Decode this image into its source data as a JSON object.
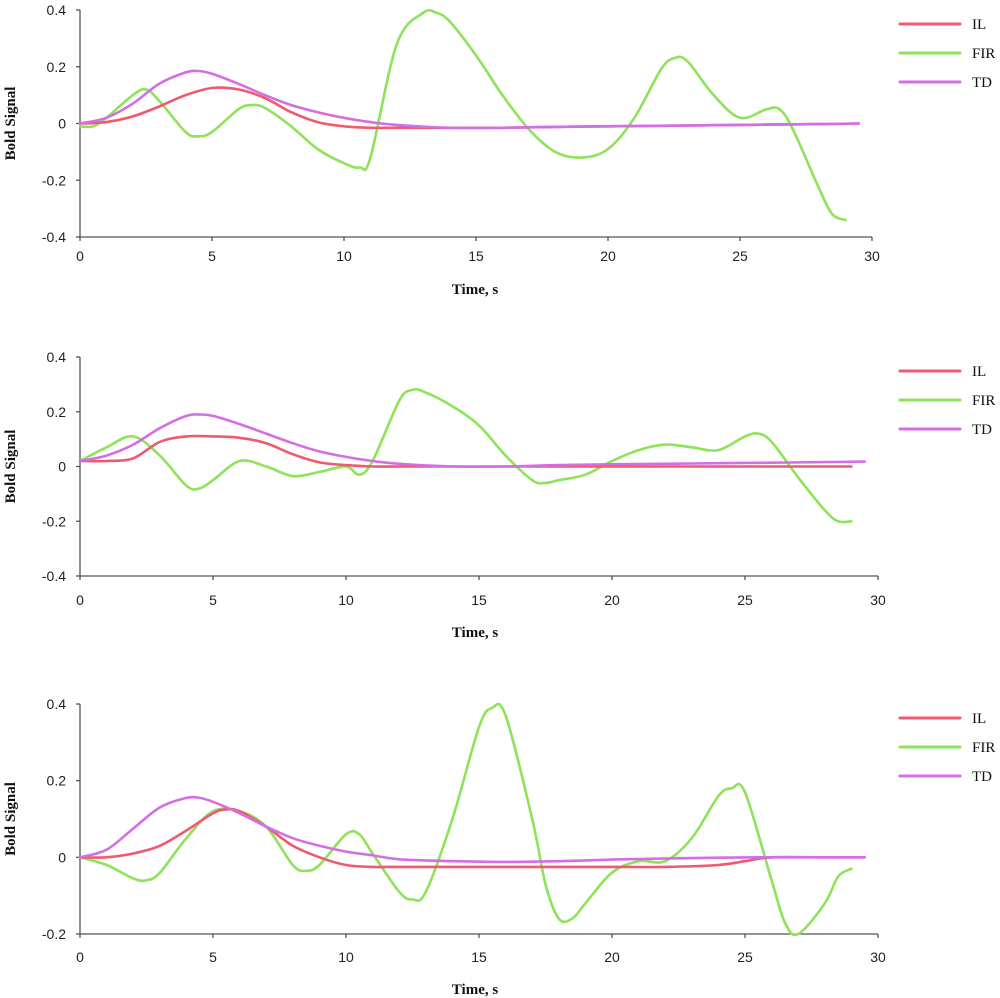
{
  "colors": {
    "IL": "#ef5a6f",
    "FIR": "#8ee35a",
    "TD": "#d36ee6"
  },
  "chart_data": [
    {
      "type": "line",
      "xlabel": "Time, s",
      "ylabel": "Bold Signal",
      "xlim": [
        0,
        30
      ],
      "ylim": [
        -0.4,
        0.4
      ],
      "x_ticks": [
        "0",
        "5",
        "10",
        "15",
        "20",
        "25",
        "30"
      ],
      "y_ticks": [
        "0.4",
        "0.2",
        "0",
        "-0.2",
        "-0.4"
      ],
      "legend_position": "top-right",
      "series": [
        {
          "name": "IL",
          "x": [
            0,
            1,
            2,
            3,
            4,
            5,
            6,
            7,
            8,
            9,
            10,
            11,
            12,
            14,
            16,
            18,
            20,
            22,
            24,
            26,
            28,
            29.5
          ],
          "values": [
            0,
            0.005,
            0.025,
            0.06,
            0.1,
            0.125,
            0.12,
            0.09,
            0.04,
            0.005,
            -0.01,
            -0.015,
            -0.015,
            -0.015,
            -0.015,
            -0.012,
            -0.01,
            -0.008,
            -0.006,
            -0.004,
            -0.002,
            0
          ]
        },
        {
          "name": "FIR",
          "x": [
            0,
            0.5,
            1,
            2,
            2.5,
            3,
            4,
            4.5,
            5,
            6,
            6.5,
            7,
            8,
            9,
            10,
            10.6,
            11,
            12,
            13,
            13.5,
            14,
            15,
            16,
            17,
            18,
            19,
            20,
            21,
            22,
            22.5,
            23,
            24,
            25,
            26,
            26.5,
            27,
            28,
            28.5,
            29
          ],
          "values": [
            -0.01,
            -0.01,
            0.02,
            0.1,
            0.12,
            0.08,
            -0.03,
            -0.045,
            -0.03,
            0.05,
            0.065,
            0.055,
            -0.01,
            -0.09,
            -0.14,
            -0.155,
            -0.12,
            0.28,
            0.39,
            0.39,
            0.36,
            0.24,
            0.1,
            -0.02,
            -0.1,
            -0.12,
            -0.09,
            0.02,
            0.19,
            0.23,
            0.22,
            0.1,
            0.02,
            0.05,
            0.05,
            -0.02,
            -0.23,
            -0.32,
            -0.34
          ]
        },
        {
          "name": "TD",
          "x": [
            0,
            1,
            2,
            3,
            4,
            4.5,
            5,
            6,
            7,
            8,
            9,
            10,
            11,
            12,
            14,
            16,
            18,
            20,
            22,
            24,
            26,
            28,
            29.5
          ],
          "values": [
            0,
            0.02,
            0.07,
            0.14,
            0.18,
            0.185,
            0.175,
            0.14,
            0.1,
            0.065,
            0.04,
            0.02,
            0.005,
            -0.005,
            -0.015,
            -0.015,
            -0.012,
            -0.01,
            -0.008,
            -0.006,
            -0.004,
            -0.002,
            0
          ]
        }
      ]
    },
    {
      "type": "line",
      "xlabel": "Time, s",
      "ylabel": "Bold Signal",
      "xlim": [
        0,
        30
      ],
      "ylim": [
        -0.4,
        0.4
      ],
      "x_ticks": [
        "0",
        "5",
        "10",
        "15",
        "20",
        "25",
        "30"
      ],
      "y_ticks": [
        "0.4",
        "0.2",
        "0",
        "-0.2",
        "-0.4"
      ],
      "legend_position": "top-right",
      "series": [
        {
          "name": "IL",
          "x": [
            0,
            1,
            2,
            3,
            4,
            5,
            6,
            7,
            8,
            9,
            10,
            11,
            12,
            14,
            16,
            18,
            20,
            22,
            24,
            26,
            28,
            29
          ],
          "values": [
            0.02,
            0.02,
            0.03,
            0.09,
            0.11,
            0.11,
            0.105,
            0.085,
            0.045,
            0.015,
            0.005,
            0,
            0,
            0,
            0,
            0,
            0,
            0,
            0,
            0,
            0,
            0
          ]
        },
        {
          "name": "FIR",
          "x": [
            0,
            1,
            2,
            3,
            4,
            4.5,
            5,
            6,
            7,
            8,
            9,
            10,
            10.5,
            11,
            12,
            12.5,
            13,
            14,
            15,
            16,
            17,
            17.5,
            18,
            19,
            20,
            21,
            22,
            23,
            24,
            25,
            25.5,
            26,
            27,
            28,
            28.5,
            29
          ],
          "values": [
            0.02,
            0.07,
            0.11,
            0.04,
            -0.07,
            -0.08,
            -0.05,
            0.02,
            0,
            -0.035,
            -0.02,
            0,
            -0.03,
            0.02,
            0.24,
            0.28,
            0.27,
            0.22,
            0.15,
            0.04,
            -0.05,
            -0.06,
            -0.05,
            -0.03,
            0.02,
            0.06,
            0.08,
            0.07,
            0.06,
            0.11,
            0.12,
            0.09,
            -0.04,
            -0.16,
            -0.2,
            -0.2
          ]
        },
        {
          "name": "TD",
          "x": [
            0,
            1,
            2,
            3,
            4,
            4.5,
            5,
            6,
            7,
            8,
            9,
            10,
            11,
            12,
            14,
            16,
            18,
            20,
            22,
            24,
            26,
            28,
            29.5
          ],
          "values": [
            0.02,
            0.04,
            0.08,
            0.14,
            0.185,
            0.19,
            0.185,
            0.155,
            0.12,
            0.085,
            0.055,
            0.035,
            0.02,
            0.01,
            0,
            0,
            0.005,
            0.008,
            0.01,
            0.012,
            0.014,
            0.016,
            0.018
          ]
        }
      ]
    },
    {
      "type": "line",
      "xlabel": "Time, s",
      "ylabel": "Bold Signal",
      "xlim": [
        0,
        30
      ],
      "ylim": [
        -0.2,
        0.4
      ],
      "x_ticks": [
        "0",
        "5",
        "10",
        "15",
        "20",
        "25",
        "30"
      ],
      "y_ticks": [
        "0.4",
        "0.2",
        "0",
        "-0.2"
      ],
      "legend_position": "top-right",
      "series": [
        {
          "name": "IL",
          "x": [
            0,
            1,
            2,
            3,
            4,
            5,
            5.5,
            6,
            7,
            8,
            9,
            10,
            11,
            12,
            14,
            16,
            18,
            20,
            22,
            24,
            25,
            26,
            28,
            29.5
          ],
          "values": [
            0,
            0,
            0.01,
            0.03,
            0.07,
            0.115,
            0.125,
            0.12,
            0.08,
            0.03,
            0,
            -0.02,
            -0.025,
            -0.025,
            -0.025,
            -0.025,
            -0.025,
            -0.025,
            -0.025,
            -0.02,
            -0.01,
            0,
            0,
            0
          ]
        },
        {
          "name": "FIR",
          "x": [
            0,
            1,
            2,
            2.5,
            3,
            4,
            5,
            6,
            7,
            8,
            8.5,
            9,
            10,
            10.5,
            11,
            12,
            12.5,
            13,
            14,
            15,
            15.5,
            16,
            17,
            17.5,
            18,
            18.5,
            19,
            20,
            21,
            22,
            23,
            24,
            24.5,
            25,
            26,
            26.5,
            27,
            28,
            28.5,
            29
          ],
          "values": [
            0,
            -0.02,
            -0.055,
            -0.06,
            -0.04,
            0.05,
            0.12,
            0.12,
            0.08,
            -0.02,
            -0.035,
            -0.02,
            0.06,
            0.06,
            0.01,
            -0.09,
            -0.11,
            -0.09,
            0.1,
            0.34,
            0.39,
            0.37,
            0.1,
            -0.07,
            -0.16,
            -0.16,
            -0.12,
            -0.04,
            -0.01,
            -0.01,
            0.05,
            0.16,
            0.18,
            0.17,
            -0.06,
            -0.17,
            -0.2,
            -0.12,
            -0.05,
            -0.03
          ]
        },
        {
          "name": "TD",
          "x": [
            0,
            1,
            2,
            3,
            4,
            4.5,
            5,
            6,
            7,
            8,
            9,
            10,
            11,
            12,
            14,
            16,
            18,
            20,
            22,
            24,
            26,
            28,
            29.5
          ],
          "values": [
            0,
            0.02,
            0.075,
            0.13,
            0.155,
            0.155,
            0.145,
            0.115,
            0.08,
            0.05,
            0.03,
            0.015,
            0.005,
            -0.005,
            -0.01,
            -0.012,
            -0.01,
            -0.006,
            -0.003,
            -0.001,
            0,
            0,
            0
          ]
        }
      ]
    }
  ]
}
